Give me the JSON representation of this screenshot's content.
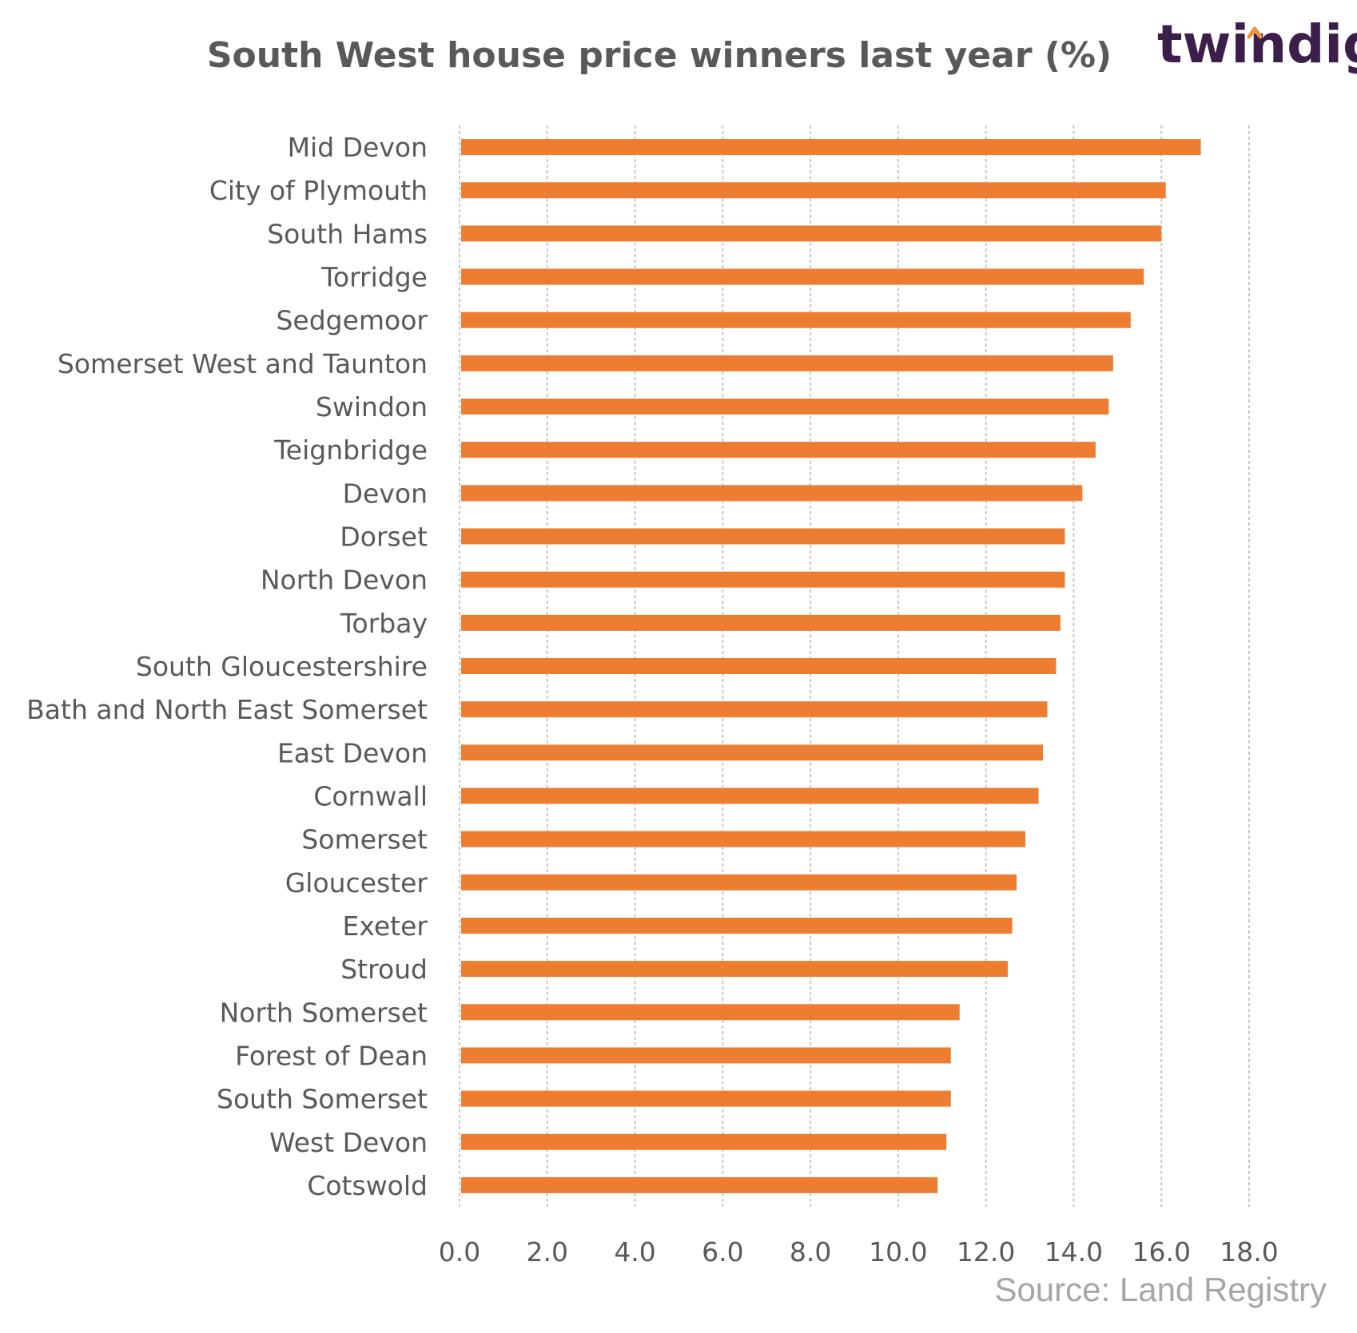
{
  "brand": {
    "logo_text": "twindig",
    "accent_color": "#f0923a"
  },
  "source_label": "Source: Land Registry",
  "chart_data": {
    "type": "bar",
    "orientation": "horizontal",
    "title": "South West house price winners last year (%)",
    "xlabel": "",
    "ylabel": "",
    "xlim": [
      0,
      18
    ],
    "ticks": [
      "0.0",
      "2.0",
      "4.0",
      "6.0",
      "8.0",
      "10.0",
      "12.0",
      "14.0",
      "16.0",
      "18.0"
    ],
    "grid": true,
    "bar_color": "#ed7d31",
    "categories": [
      "Mid Devon",
      "City of Plymouth",
      "South Hams",
      "Torridge",
      "Sedgemoor",
      "Somerset West and Taunton",
      "Swindon",
      "Teignbridge",
      "Devon",
      "Dorset",
      "North Devon",
      "Torbay",
      "South Gloucestershire",
      "Bath and North East Somerset",
      "East Devon",
      "Cornwall",
      "Somerset",
      "Gloucester",
      "Exeter",
      "Stroud",
      "North Somerset",
      "Forest of Dean",
      "South Somerset",
      "West Devon",
      "Cotswold"
    ],
    "values": [
      16.9,
      16.1,
      16.0,
      15.6,
      15.3,
      14.9,
      14.8,
      14.5,
      14.2,
      13.8,
      13.8,
      13.7,
      13.6,
      13.4,
      13.3,
      13.2,
      12.9,
      12.7,
      12.6,
      12.5,
      11.4,
      11.2,
      11.2,
      11.1,
      10.9
    ]
  }
}
